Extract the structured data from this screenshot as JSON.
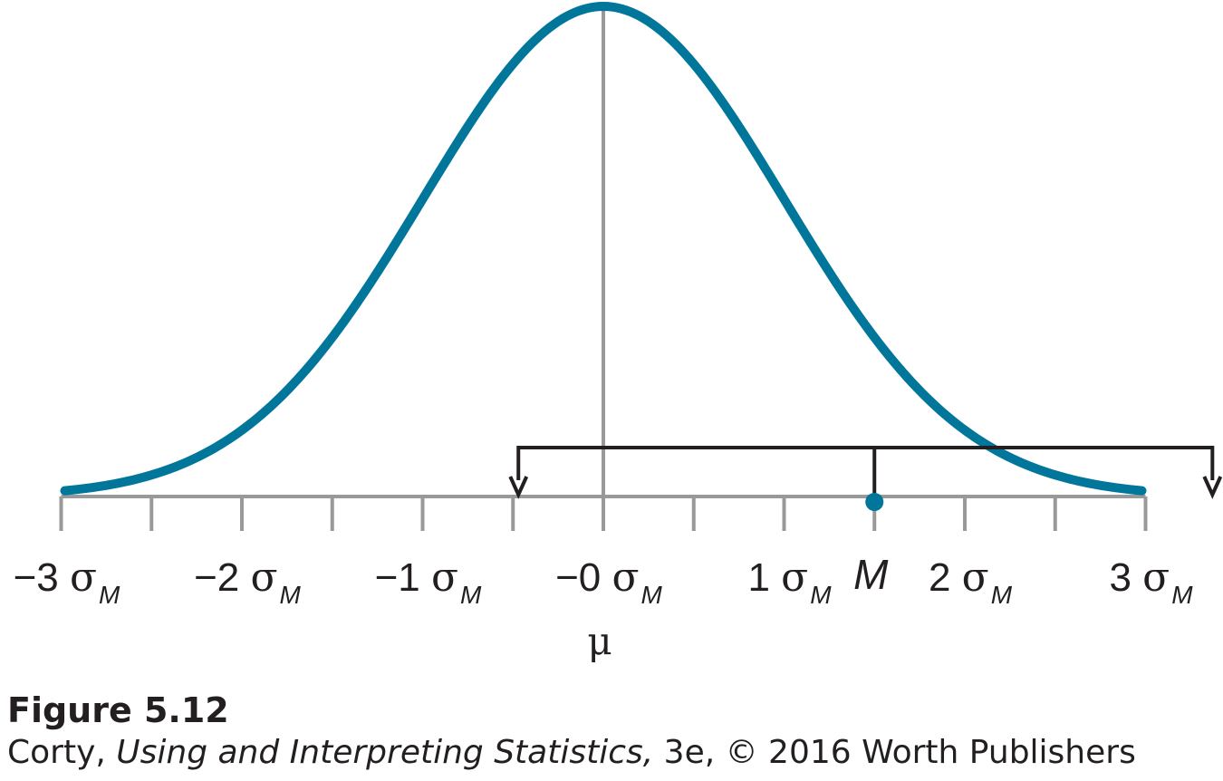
{
  "figure": {
    "label": "Figure 5.12",
    "credit": {
      "author": "Corty,",
      "book": "Using and Interpreting Statistics,",
      "rest": "3e, © 2016 Worth Publishers"
    }
  },
  "diagram": {
    "curve_color": "#00769b",
    "axis_color": "#999999",
    "bracket_color": "#231f20",
    "sigma_symbol": "σ",
    "sigma_subscript": "M",
    "tick_labels": [
      {
        "value": -3,
        "text": "−3"
      },
      {
        "value": -2,
        "text": "−2"
      },
      {
        "value": -1,
        "text": "−1"
      },
      {
        "value": 0,
        "text": "−0"
      },
      {
        "value": 1,
        "text": "1"
      },
      {
        "value": 2,
        "text": "2"
      },
      {
        "value": 3,
        "text": "3"
      }
    ],
    "minor_tick_values": [
      -3,
      -2.5,
      -2,
      -1.5,
      -1,
      -0.5,
      0,
      0.5,
      1,
      1.5,
      2,
      2.5,
      3
    ],
    "sample_mean": {
      "label": "M",
      "value": 1.5
    },
    "population_mean_label": "μ",
    "interval": {
      "lower": -0.47,
      "upper": 3.37
    }
  }
}
